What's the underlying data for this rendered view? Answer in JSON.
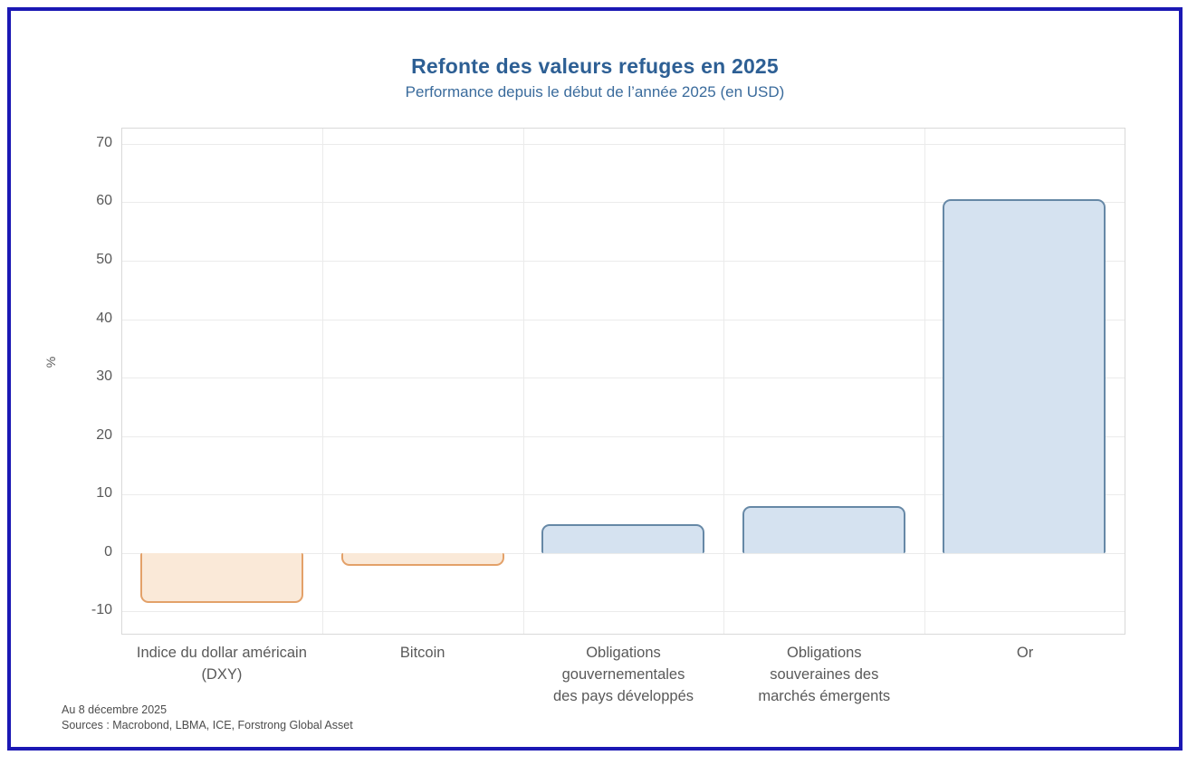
{
  "footer": {
    "as_of": "Au 8 décembre 2025",
    "sources": "Sources : Macrobond, LBMA, ICE, Forstrong Global Asset"
  },
  "colors": {
    "frame": "#1B18B4",
    "title": "#2D5F94",
    "subtitle": "#3A6B9C",
    "positive_fill": "#D5E2F0",
    "positive_border": "#6688A6",
    "negative_fill": "#FAE9D8",
    "negative_border": "#E3A169",
    "grid": "#EBEBEB",
    "plot_border": "#D9D9D9",
    "axis_text": "#595959"
  },
  "chart_data": {
    "type": "bar",
    "title": "Refonte des valeurs refuges en 2025",
    "subtitle": "Performance depuis le début de l’année 2025 (en USD)",
    "categories": [
      "Indice du dollar américain\n(DXY)",
      "Bitcoin",
      "Obligations\ngouvernementales\ndes pays développés",
      "Obligations\nsouveraines des\nmarchés émergents",
      "Or"
    ],
    "ids": [
      "dxy",
      "bitcoin",
      "dm-gov-bonds",
      "em-sov-bonds",
      "gold"
    ],
    "values": [
      -8.5,
      -2.2,
      5.0,
      8.0,
      60.5
    ],
    "xlabel": "",
    "ylabel": "%",
    "yticks": [
      70,
      60,
      50,
      40,
      30,
      20,
      10,
      0,
      -10
    ],
    "ylim": [
      -13.8,
      72.6
    ],
    "grid": true,
    "legend": false,
    "bar_width_fraction": 0.815
  }
}
